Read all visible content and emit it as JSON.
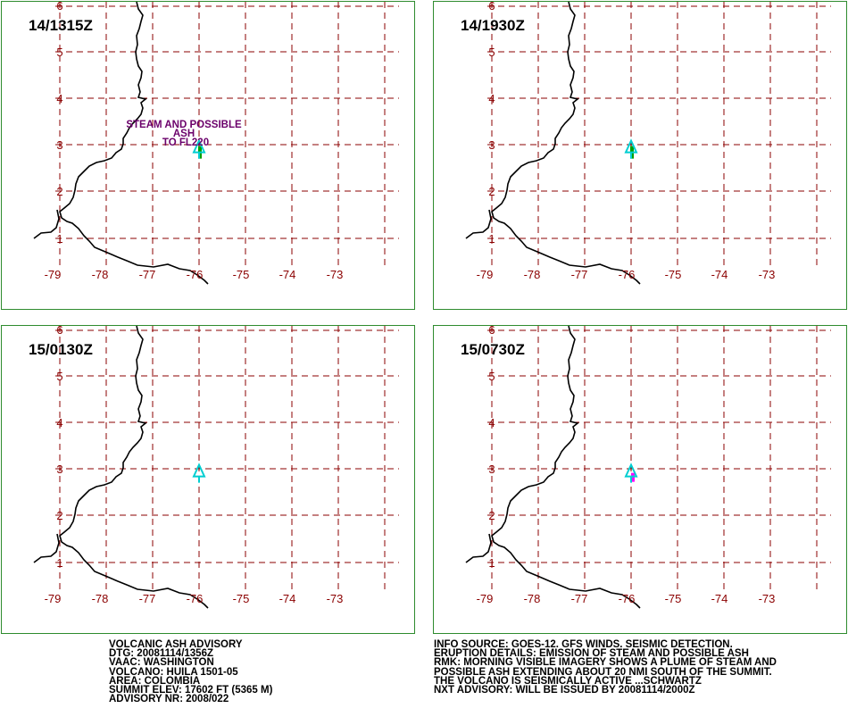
{
  "panels": [
    {
      "time": "14/1315Z",
      "label_lines": [
        "STEAM AND POSSIBLE",
        "ASH",
        "TO FL220"
      ],
      "plume": "green"
    },
    {
      "time": "14/1930Z",
      "label_lines": [],
      "plume": "green"
    },
    {
      "time": "15/0130Z",
      "label_lines": [],
      "plume": "none"
    },
    {
      "time": "15/0730Z",
      "label_lines": [],
      "plume": "magenta"
    }
  ],
  "map": {
    "lon_labels": [
      "-79",
      "-78",
      "-77",
      "-76",
      "-75",
      "-74",
      "-73"
    ],
    "lat_labels": [
      "6",
      "5",
      "4",
      "3",
      "2",
      "1"
    ],
    "volcano_lonlat": [
      -76.0,
      2.93
    ],
    "colors": {
      "grid": "#8b0000",
      "coast": "#000000",
      "volcano": "#00ced1",
      "label": "#6b006b",
      "frame": "#2e8b2e",
      "plume_green": "#00a000",
      "plume_magenta": "#ff00ff"
    }
  },
  "advisory_left": [
    "VOLCANIC ASH ADVISORY",
    "DTG: 20081114/1356Z",
    "VAAC: WASHINGTON",
    "VOLCANO: HUILA 1501-05",
    "AREA: COLOMBIA",
    "SUMMIT ELEV: 17602 FT (5365 M)",
    "ADVISORY NR: 2008/022"
  ],
  "advisory_right": [
    "INFO SOURCE: GOES-12. GFS WINDS. SEISMIC DETECTION.",
    "ERUPTION DETAILS: EMISSION OF STEAM AND POSSIBLE ASH",
    "RMK: MORNING VISIBLE IMAGERY SHOWS A PLUME OF STEAM AND",
    "POSSIBLE ASH EXTENDING ABOUT 20 NMI SOUTH OF THE SUMMIT.",
    "THE VOLCANO IS SEISMICALLY ACTIVE ...SCHWARTZ",
    "NXT ADVISORY: WILL BE ISSUED BY 20081114/2000Z"
  ]
}
